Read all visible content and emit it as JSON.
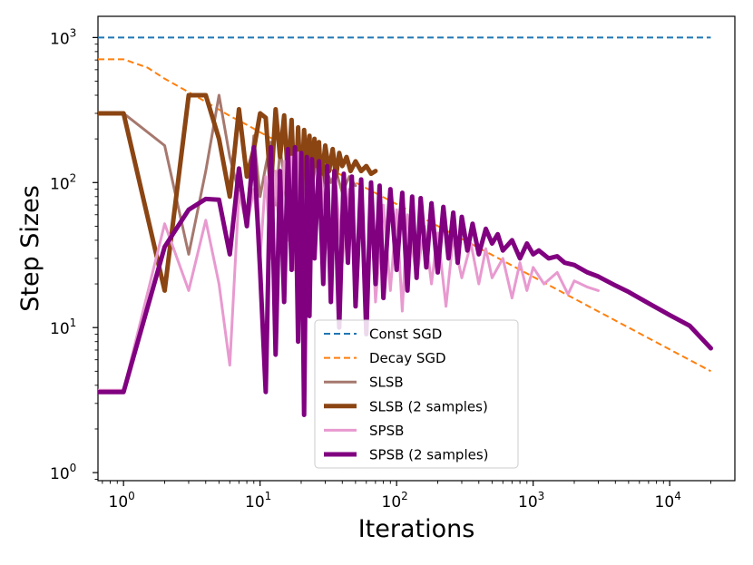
{
  "chart_data": {
    "type": "line",
    "title": "",
    "xlabel": "Iterations",
    "ylabel": "Step Sizes",
    "xscale": "log",
    "yscale": "log",
    "xlim": [
      0.65,
      30000
    ],
    "ylim": [
      0.88,
      1400
    ],
    "x_ticks": [
      {
        "value": 1,
        "base": "10",
        "exp": "0"
      },
      {
        "value": 10,
        "base": "10",
        "exp": "1"
      },
      {
        "value": 100,
        "base": "10",
        "exp": "2"
      },
      {
        "value": 1000,
        "base": "10",
        "exp": "3"
      },
      {
        "value": 10000,
        "base": "10",
        "exp": "4"
      }
    ],
    "y_ticks": [
      {
        "value": 1,
        "base": "10",
        "exp": "0"
      },
      {
        "value": 10,
        "base": "10",
        "exp": "1"
      },
      {
        "value": 100,
        "base": "10",
        "exp": "2"
      },
      {
        "value": 1000,
        "base": "10",
        "exp": "3"
      }
    ],
    "legend_position": "lower-center",
    "series": [
      {
        "name": "Const SGD",
        "color": "#1f77b4",
        "style": "dashed",
        "width": 2,
        "x": [
          0.65,
          20000
        ],
        "y": [
          1000,
          1000
        ]
      },
      {
        "name": "Decay SGD",
        "color": "#ff7f0e",
        "style": "dashed",
        "width": 2,
        "x": [
          0.65,
          1.0,
          1.5,
          2,
          3,
          4,
          5,
          6,
          8,
          10,
          15,
          20,
          30,
          50,
          100,
          1000,
          10000,
          20000
        ],
        "y": [
          707,
          707,
          620,
          520,
          420,
          360,
          318,
          288,
          250,
          222,
          182,
          158,
          129,
          100,
          71,
          22.4,
          7.07,
          5.0
        ]
      },
      {
        "name": "SLSB",
        "color": "#a6786e",
        "style": "solid",
        "width": 3,
        "x": [
          0.65,
          1,
          2,
          3,
          4,
          5,
          6,
          7,
          8,
          9,
          10,
          11,
          12,
          13,
          14,
          15,
          16,
          17,
          18,
          19,
          20,
          22,
          24,
          26,
          28,
          30,
          33,
          36,
          40,
          45,
          50
        ],
        "y": [
          300,
          300,
          180,
          32,
          120,
          400,
          150,
          85,
          60,
          210,
          80,
          130,
          190,
          70,
          170,
          110,
          50,
          140,
          85,
          160,
          65,
          140,
          90,
          150,
          80,
          130,
          100,
          120,
          85,
          110,
          95
        ]
      },
      {
        "name": "SLSB (2 samples)",
        "color": "#8b4513",
        "style": "solid",
        "width": 5,
        "x": [
          0.65,
          1,
          2,
          3,
          4,
          5,
          6,
          7,
          8,
          9,
          10,
          11,
          12,
          13,
          14,
          15,
          16,
          17,
          18,
          19,
          20,
          21,
          22,
          23,
          24,
          25,
          26,
          27,
          28,
          30,
          32,
          34,
          36,
          38,
          40,
          43,
          46,
          50,
          55,
          60,
          65,
          70
        ],
        "y": [
          300,
          300,
          18,
          400,
          400,
          200,
          80,
          320,
          110,
          170,
          300,
          280,
          90,
          320,
          150,
          290,
          110,
          270,
          70,
          240,
          80,
          230,
          120,
          210,
          95,
          200,
          130,
          190,
          100,
          180,
          120,
          170,
          110,
          160,
          130,
          150,
          120,
          140,
          120,
          130,
          115,
          120
        ]
      },
      {
        "name": "SPSB",
        "color": "#e89ad0",
        "style": "solid",
        "width": 3,
        "x": [
          0.65,
          1,
          2,
          3,
          4,
          5,
          6,
          7,
          8,
          9,
          10,
          11,
          12,
          13,
          14,
          15,
          16,
          17,
          18,
          19,
          20,
          22,
          25,
          28,
          32,
          36,
          40,
          45,
          50,
          55,
          60,
          65,
          70,
          80,
          90,
          100,
          110,
          120,
          140,
          160,
          180,
          200,
          230,
          260,
          300,
          350,
          400,
          450,
          500,
          600,
          700,
          800,
          900,
          1000,
          1200,
          1500,
          1800,
          2000,
          2500,
          3000
        ],
        "y": [
          3.7,
          3.7,
          52,
          18,
          55,
          20,
          5.5,
          85,
          50,
          90,
          30,
          110,
          30,
          120,
          35,
          140,
          40,
          150,
          25,
          160,
          20,
          130,
          35,
          110,
          30,
          95,
          28,
          90,
          25,
          80,
          9.5,
          75,
          15,
          70,
          18,
          65,
          13,
          60,
          22,
          50,
          20,
          45,
          14,
          42,
          22,
          38,
          20,
          35,
          22,
          30,
          16,
          28,
          18,
          26,
          20,
          24,
          17,
          21,
          19,
          18
        ]
      },
      {
        "name": "SPSB (2 samples)",
        "color": "#800080",
        "style": "solid",
        "width": 5,
        "x": [
          0.65,
          1,
          2,
          3,
          4,
          5,
          6,
          7,
          8,
          9,
          10,
          11,
          12,
          13,
          14,
          15,
          16,
          17,
          18,
          19,
          20,
          21,
          22,
          23,
          24,
          25,
          27,
          29,
          31,
          33,
          35,
          38,
          41,
          44,
          47,
          50,
          55,
          60,
          65,
          70,
          75,
          80,
          90,
          100,
          110,
          120,
          130,
          140,
          150,
          165,
          180,
          200,
          220,
          240,
          260,
          280,
          300,
          330,
          360,
          400,
          450,
          500,
          550,
          600,
          700,
          800,
          900,
          1000,
          1100,
          1300,
          1500,
          1700,
          2000,
          2500,
          3000,
          4000,
          5000,
          7000,
          10000,
          14000,
          20000
        ],
        "y": [
          3.6,
          3.6,
          36,
          65,
          77,
          76,
          32,
          125,
          50,
          175,
          25,
          3.6,
          175,
          6.5,
          120,
          15,
          170,
          25,
          175,
          8,
          160,
          2.5,
          150,
          12,
          145,
          30,
          140,
          20,
          130,
          15,
          120,
          10,
          115,
          28,
          110,
          14,
          105,
          9,
          100,
          20,
          95,
          16,
          90,
          25,
          85,
          18,
          80,
          22,
          78,
          26,
          72,
          24,
          68,
          30,
          62,
          28,
          58,
          34,
          52,
          32,
          48,
          38,
          44,
          34,
          40,
          30,
          38,
          32,
          34,
          30,
          31,
          28,
          27,
          24,
          22.5,
          19.5,
          17.6,
          14.7,
          12.2,
          10.3,
          7.2
        ]
      }
    ]
  }
}
